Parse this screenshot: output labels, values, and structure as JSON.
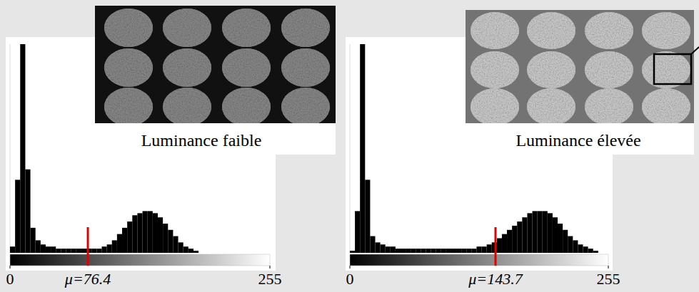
{
  "chart_data": [
    {
      "type": "histogram",
      "title": "Luminance faible",
      "bins": [
        0,
        5,
        10,
        15,
        20,
        25,
        30,
        35,
        40,
        45,
        50,
        55,
        60,
        65,
        70,
        75,
        80,
        85,
        90,
        95,
        100,
        105,
        110,
        115,
        120,
        125,
        130,
        135,
        140,
        145,
        150,
        155,
        160,
        165,
        170,
        175,
        180,
        185,
        190,
        195,
        200,
        205,
        210,
        215,
        220,
        225,
        230,
        235,
        240,
        245,
        250,
        255
      ],
      "counts": [
        3,
        35,
        100,
        40,
        12,
        6,
        4,
        3,
        3,
        2,
        2,
        2,
        2,
        2,
        2,
        2,
        2,
        2,
        3,
        4,
        6,
        9,
        12,
        15,
        18,
        19,
        20,
        20,
        19,
        17,
        14,
        11,
        8,
        5,
        3,
        2,
        1,
        0,
        0,
        0,
        0,
        0,
        0,
        0,
        0,
        0,
        0,
        0,
        0,
        0,
        0
      ],
      "color": "#000000",
      "xlim": [
        0,
        255
      ],
      "xticks": [
        0,
        255
      ],
      "ylim": [
        0,
        100
      ],
      "yticks": [],
      "tick_labels": "x",
      "annotations": [
        {
          "x": 76.4,
          "label": "μ=76.4",
          "color": "#e00000"
        }
      ]
    },
    {
      "type": "histogram",
      "title": "Luminance élevée",
      "bins": [
        0,
        5,
        10,
        15,
        20,
        25,
        30,
        35,
        40,
        45,
        50,
        55,
        60,
        65,
        70,
        75,
        80,
        85,
        90,
        95,
        100,
        105,
        110,
        115,
        120,
        125,
        130,
        135,
        140,
        145,
        150,
        155,
        160,
        165,
        170,
        175,
        180,
        185,
        190,
        195,
        200,
        205,
        210,
        215,
        220,
        225,
        230,
        235,
        240,
        245,
        250,
        255
      ],
      "counts": [
        1,
        20,
        100,
        35,
        8,
        5,
        4,
        3,
        3,
        2,
        2,
        2,
        2,
        2,
        2,
        2,
        2,
        2,
        2,
        2,
        2,
        2,
        2,
        2,
        2,
        3,
        3,
        4,
        5,
        7,
        9,
        11,
        13,
        15,
        17,
        19,
        20,
        20,
        20,
        19,
        17,
        14,
        11,
        8,
        6,
        4,
        3,
        2,
        1,
        0,
        0
      ],
      "color": "#000000",
      "xlim": [
        0,
        255
      ],
      "xticks": [
        0,
        255
      ],
      "ylim": [
        0,
        100
      ],
      "yticks": [],
      "tick_labels": "x",
      "annotations": [
        {
          "x": 143.7,
          "label": "μ=143.7",
          "color": "#e00000"
        }
      ]
    }
  ]
}
